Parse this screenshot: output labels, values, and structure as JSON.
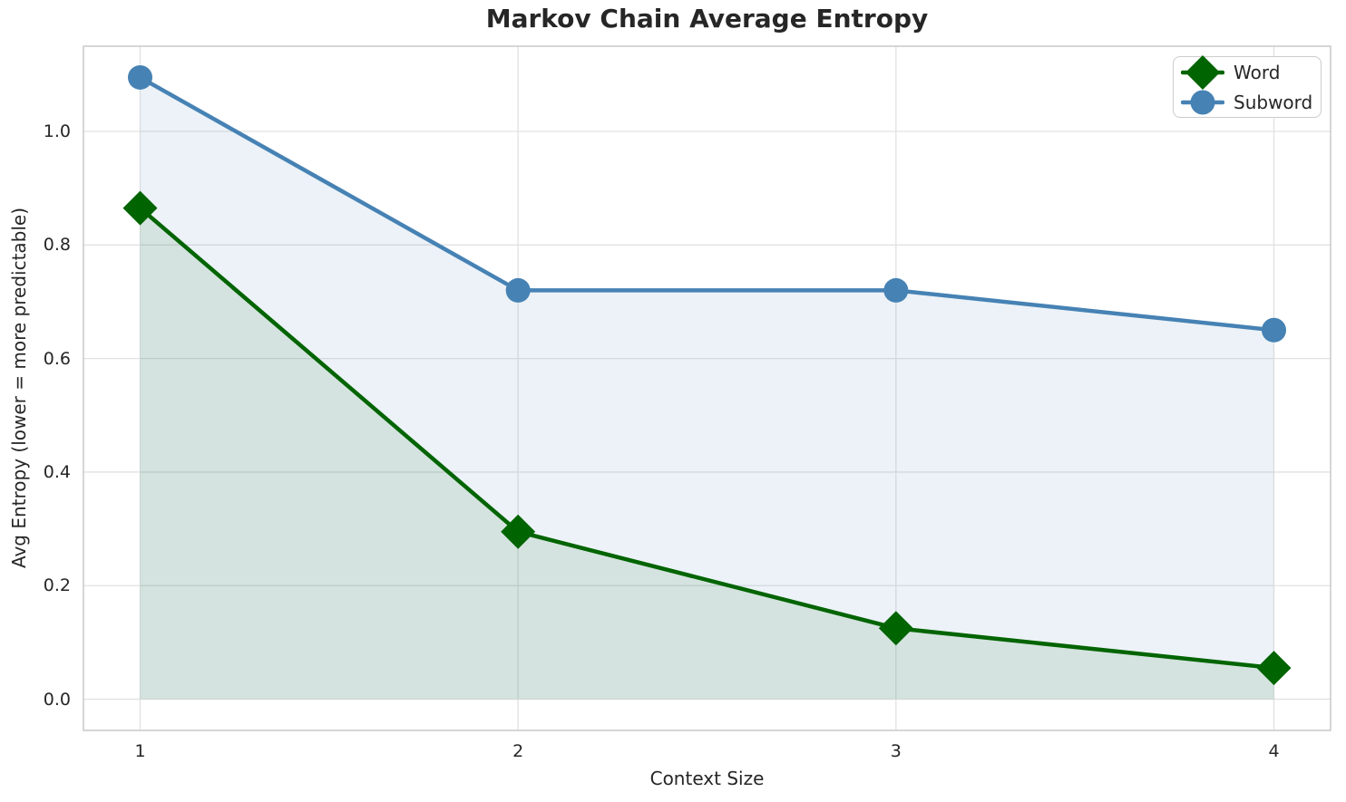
{
  "chart_data": {
    "type": "line",
    "title": "Markov Chain Average Entropy",
    "xlabel": "Context Size",
    "ylabel": "Avg Entropy (lower = more predictable)",
    "x": [
      1,
      2,
      3,
      4
    ],
    "x_tick_labels": [
      "1",
      "2",
      "3",
      "4"
    ],
    "y_tick_values": [
      0.0,
      0.2,
      0.4,
      0.6,
      0.8,
      1.0
    ],
    "y_tick_labels": [
      "0.0",
      "0.2",
      "0.4",
      "0.6",
      "0.8",
      "1.0"
    ],
    "xlim": [
      0.85,
      4.15
    ],
    "ylim": [
      -0.055,
      1.15
    ],
    "grid": true,
    "legend_position": "upper right",
    "area_baseline": 0,
    "series": [
      {
        "name": "Word",
        "marker": "diamond",
        "color": "#006400",
        "fill_opacity": 0.1,
        "values": [
          0.865,
          0.295,
          0.125,
          0.055
        ]
      },
      {
        "name": "Subword",
        "marker": "circle",
        "color": "#4682B4",
        "fill_opacity": 0.1,
        "values": [
          1.095,
          0.72,
          0.72,
          0.65
        ]
      }
    ]
  }
}
